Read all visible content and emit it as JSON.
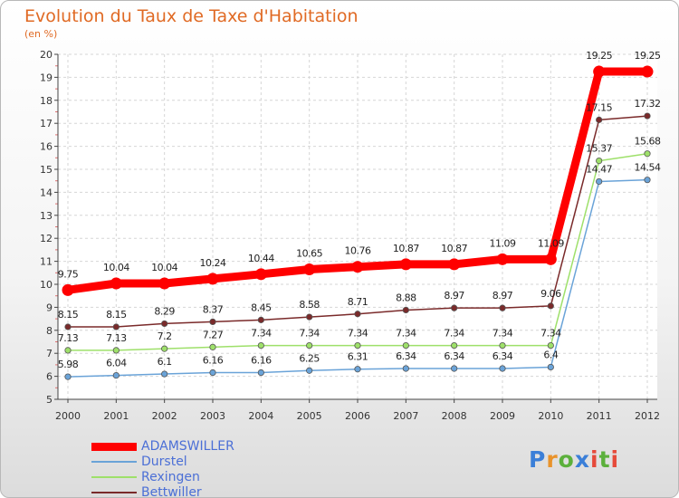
{
  "title": "Evolution du Taux de Taxe d'Habitation",
  "subtitle": "(en %)",
  "logo": {
    "letters": [
      "P",
      "r",
      "o",
      "x",
      "i",
      "t",
      "i"
    ],
    "colors": [
      "#3b7fd8",
      "#e9932b",
      "#5cb03c",
      "#3b7fd8",
      "#e64a3a",
      "#5cb03c",
      "#e64a3a"
    ]
  },
  "chart_data": {
    "type": "line",
    "title": "Evolution du Taux de Taxe d'Habitation",
    "ylabel": "(en %)",
    "xlabel": "",
    "ylim": [
      5,
      20
    ],
    "y_ticks": [
      "5",
      "6",
      "7",
      "8",
      "9",
      "10",
      "11",
      "12",
      "13",
      "14",
      "15",
      "16",
      "17",
      "18",
      "19",
      "20"
    ],
    "categories": [
      "2000",
      "2001",
      "2002",
      "2003",
      "2004",
      "2005",
      "2006",
      "2007",
      "2008",
      "2009",
      "2010",
      "2011",
      "2012"
    ],
    "grid": true,
    "legend_position": "bottom-left",
    "series": [
      {
        "name": "ADAMSWILLER",
        "color": "#ff0000",
        "values": [
          9.75,
          10.04,
          10.04,
          10.24,
          10.44,
          10.65,
          10.76,
          10.87,
          10.87,
          11.09,
          11.09,
          19.25,
          19.25
        ],
        "labels": [
          "9.75",
          "10.04",
          "10.04",
          "10.24",
          "10.44",
          "10.65",
          "10.76",
          "10.87",
          "10.87",
          "11.09",
          "11.09",
          "19.25",
          "19.25"
        ]
      },
      {
        "name": "Durstel",
        "color": "#6aa3d8",
        "values": [
          5.98,
          6.04,
          6.1,
          6.16,
          6.16,
          6.25,
          6.31,
          6.34,
          6.34,
          6.34,
          6.4,
          14.47,
          14.54
        ],
        "labels": [
          "5.98",
          "6.04",
          "6.1",
          "6.16",
          "6.16",
          "6.25",
          "6.31",
          "6.34",
          "6.34",
          "6.34",
          "6.4",
          "14.47",
          "14.54"
        ]
      },
      {
        "name": "Rexingen",
        "color": "#9ee06a",
        "values": [
          7.13,
          7.13,
          7.2,
          7.27,
          7.34,
          7.34,
          7.34,
          7.34,
          7.34,
          7.34,
          7.34,
          15.37,
          15.68
        ],
        "labels": [
          "7.13",
          "7.13",
          "7.2",
          "7.27",
          "7.34",
          "7.34",
          "7.34",
          "7.34",
          "7.34",
          "7.34",
          "7.34",
          "15.37",
          "15.68"
        ]
      },
      {
        "name": "Bettwiller",
        "color": "#7a2a2a",
        "values": [
          8.15,
          8.15,
          8.29,
          8.37,
          8.45,
          8.58,
          8.71,
          8.88,
          8.97,
          8.97,
          9.06,
          17.15,
          17.32
        ],
        "labels": [
          "8.15",
          "8.15",
          "8.29",
          "8.37",
          "8.45",
          "8.58",
          "8.71",
          "8.88",
          "8.97",
          "8.97",
          "9.06",
          "17.15",
          "17.32"
        ]
      }
    ]
  }
}
